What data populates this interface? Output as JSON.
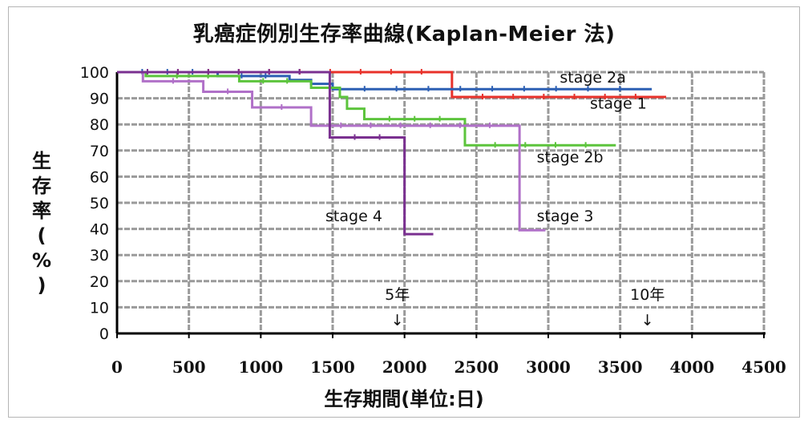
{
  "chart_data": {
    "type": "line",
    "title": "乳癌症例別生存率曲線(Kaplan-Meier 法)",
    "xlabel": "生存期間(単位:日)",
    "ylabel": "生存率(%)",
    "xlim": [
      0,
      4500
    ],
    "ylim": [
      0,
      100
    ],
    "xticks": [
      "0",
      "500",
      "1000",
      "1500",
      "2000",
      "2500",
      "3000",
      "3500",
      "4000",
      "4500"
    ],
    "yticks": [
      "0",
      "10",
      "20",
      "30",
      "40",
      "50",
      "60",
      "70",
      "80",
      "90",
      "100"
    ],
    "grid": true,
    "step": true,
    "series": [
      {
        "name": "stage 1",
        "color": "#e8312a",
        "x": [
          0,
          2330,
          3820
        ],
        "y": [
          100,
          90.5,
          90.5
        ]
      },
      {
        "name": "stage 2a",
        "color": "#2c5fb3",
        "x": [
          0,
          700,
          1200,
          1350,
          1500,
          3720
        ],
        "y": [
          100,
          98.5,
          97,
          95.5,
          93.5,
          93.5
        ]
      },
      {
        "name": "stage 2b",
        "color": "#5cc43c",
        "x": [
          0,
          200,
          850,
          1350,
          1550,
          1600,
          1720,
          2420,
          3470
        ],
        "y": [
          100,
          98.5,
          96.5,
          94,
          90.5,
          86,
          82,
          72,
          72
        ]
      },
      {
        "name": "stage 3",
        "color": "#b070c8",
        "x": [
          0,
          180,
          600,
          940,
          1350,
          2800,
          2980
        ],
        "y": [
          100,
          96.5,
          92.5,
          86.5,
          79.5,
          39.5,
          39.5
        ]
      },
      {
        "name": "stage 4",
        "color": "#7a3090",
        "x": [
          0,
          1480,
          2000,
          2200
        ],
        "y": [
          100,
          75,
          38,
          38
        ]
      }
    ],
    "annotations": [
      {
        "text": "stage 2a",
        "x": 3080,
        "y": 96
      },
      {
        "text": "stage 1",
        "x": 3290,
        "y": 86
      },
      {
        "text": "stage 2b",
        "x": 2920,
        "y": 65.5
      },
      {
        "text": "stage 4",
        "x": 1450,
        "y": 43
      },
      {
        "text": "stage 3",
        "x": 2920,
        "y": 43
      }
    ],
    "markers": [
      {
        "label": "5年",
        "arrow": "↓",
        "x": 1950
      },
      {
        "label": "10年",
        "arrow": "↓",
        "x": 3690
      }
    ]
  }
}
